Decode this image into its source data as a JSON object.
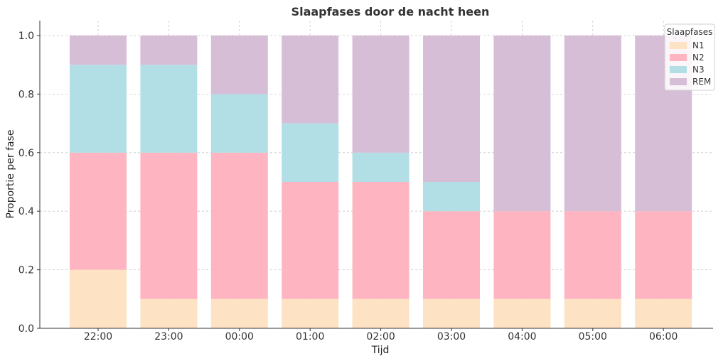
{
  "chart_data": {
    "type": "bar",
    "stacked": true,
    "title": "Slaapfases door de nacht heen",
    "xlabel": "Tijd",
    "ylabel": "Proportie per fase",
    "ylim": [
      0,
      1.05
    ],
    "yticks": [
      "0.0",
      "0.2",
      "0.4",
      "0.6",
      "0.8",
      "1.0"
    ],
    "grid": true,
    "legend_title": "Slaapfases",
    "legend_position": "top-right",
    "categories": [
      "22:00",
      "23:00",
      "00:00",
      "01:00",
      "02:00",
      "03:00",
      "04:00",
      "05:00",
      "06:00"
    ],
    "series": [
      {
        "name": "N1",
        "color": "#fde2c3",
        "values": [
          0.2,
          0.1,
          0.1,
          0.1,
          0.1,
          0.1,
          0.1,
          0.1,
          0.1
        ]
      },
      {
        "name": "N2",
        "color": "#ffb5c1",
        "values": [
          0.4,
          0.5,
          0.5,
          0.4,
          0.4,
          0.3,
          0.3,
          0.3,
          0.3
        ]
      },
      {
        "name": "N3",
        "color": "#b1dfe5",
        "values": [
          0.3,
          0.3,
          0.2,
          0.2,
          0.1,
          0.1,
          0.0,
          0.0,
          0.0
        ]
      },
      {
        "name": "REM",
        "color": "#d7bed7",
        "values": [
          0.1,
          0.1,
          0.2,
          0.3,
          0.4,
          0.5,
          0.6,
          0.6,
          0.6
        ]
      }
    ]
  }
}
